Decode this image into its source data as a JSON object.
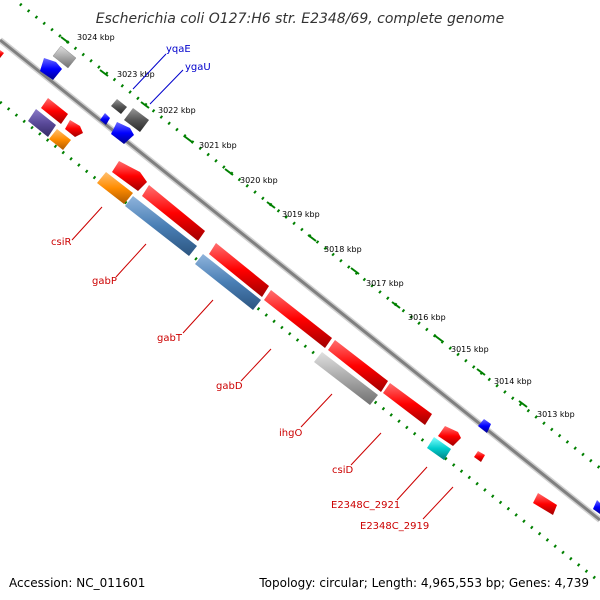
{
  "title": "Escherichia coli O127:H6 str. E2348/69, complete genome",
  "footer": {
    "accession": "Accession: NC_011601",
    "topology": "Topology: circular; Length: 4,965,553 bp; Genes: 4,739"
  },
  "ticks": [
    "3024 kbp",
    "3023 kbp",
    "3022 kbp",
    "3021 kbp",
    "3020 kbp",
    "3019 kbp",
    "3018 kbp",
    "3017 kbp",
    "3016 kbp",
    "3015 kbp",
    "3014 kbp",
    "3013 kbp"
  ],
  "gene_labels": [
    "yqaE",
    "ygaU",
    "csiR",
    "gabP",
    "gabT",
    "gabD",
    "ihgO",
    "csiD",
    "E2348C_2921",
    "E2348C_2919"
  ],
  "colors": {
    "red": "#ff0000",
    "blue": "#0000ff",
    "steel": "#4a7fb5",
    "orange": "#ff8c00",
    "gray": "#a8a8a8",
    "darkgray": "#555555",
    "purple": "#5a4a9a",
    "cyan": "#00cccc",
    "dots": "#008000",
    "backbone": "#808080"
  }
}
